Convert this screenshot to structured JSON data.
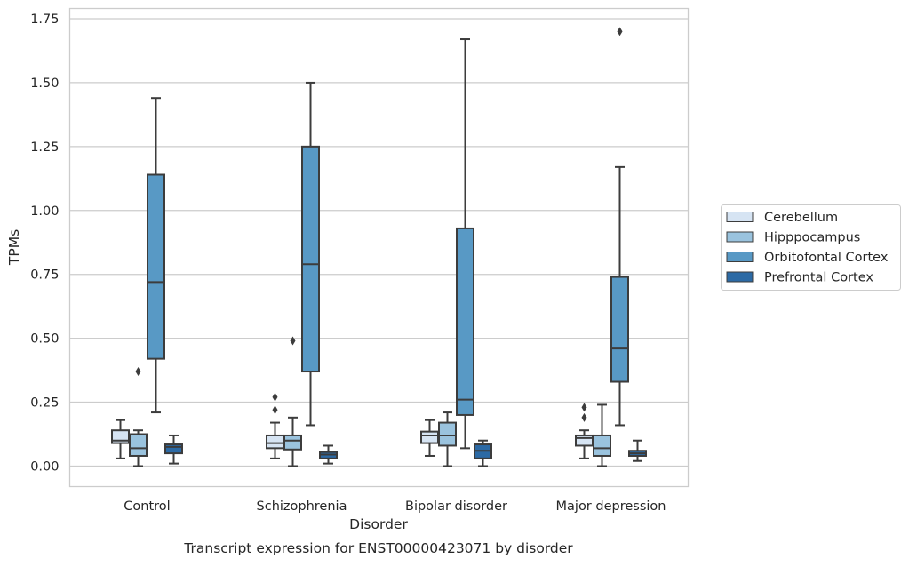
{
  "caption": "Transcript expression for ENST00000423071 by disorder",
  "chart_data": {
    "type": "box",
    "title": "",
    "xlabel": "Disorder",
    "ylabel": "TPMs",
    "ylim": [
      -0.08,
      1.79
    ],
    "yticks": [
      "0.00",
      "0.25",
      "0.50",
      "0.75",
      "1.00",
      "1.25",
      "1.50",
      "1.75"
    ],
    "ytick_values": [
      0.0,
      0.25,
      0.5,
      0.75,
      1.0,
      1.25,
      1.5,
      1.75
    ],
    "grid": "horizontal",
    "legend_position": "right",
    "categories": [
      "Control",
      "Schizophrenia",
      "Bipolar disorder",
      "Major depression"
    ],
    "series": [
      {
        "name": "Cerebellum",
        "color": "#d6e4f3",
        "boxes": [
          {
            "whislo": 0.03,
            "q1": 0.09,
            "med": 0.1,
            "q3": 0.14,
            "whishi": 0.18,
            "fliers": []
          },
          {
            "whislo": 0.03,
            "q1": 0.07,
            "med": 0.09,
            "q3": 0.12,
            "whishi": 0.17,
            "fliers": [
              0.22,
              0.27
            ]
          },
          {
            "whislo": 0.04,
            "q1": 0.09,
            "med": 0.12,
            "q3": 0.135,
            "whishi": 0.18,
            "fliers": []
          },
          {
            "whislo": 0.03,
            "q1": 0.08,
            "med": 0.11,
            "q3": 0.12,
            "whishi": 0.14,
            "fliers": [
              0.19,
              0.23
            ]
          }
        ]
      },
      {
        "name": "Hipppocampus",
        "color": "#9ac3de",
        "boxes": [
          {
            "whislo": 0.0,
            "q1": 0.04,
            "med": 0.07,
            "q3": 0.125,
            "whishi": 0.14,
            "fliers": [
              0.37
            ]
          },
          {
            "whislo": 0.0,
            "q1": 0.065,
            "med": 0.1,
            "q3": 0.12,
            "whishi": 0.19,
            "fliers": [
              0.49
            ]
          },
          {
            "whislo": 0.0,
            "q1": 0.08,
            "med": 0.12,
            "q3": 0.17,
            "whishi": 0.21,
            "fliers": []
          },
          {
            "whislo": 0.0,
            "q1": 0.04,
            "med": 0.07,
            "q3": 0.12,
            "whishi": 0.24,
            "fliers": []
          }
        ]
      },
      {
        "name": "Orbitofontal Cortex",
        "color": "#5899c5",
        "boxes": [
          {
            "whislo": 0.21,
            "q1": 0.42,
            "med": 0.72,
            "q3": 1.14,
            "whishi": 1.44,
            "fliers": []
          },
          {
            "whislo": 0.16,
            "q1": 0.37,
            "med": 0.79,
            "q3": 1.25,
            "whishi": 1.5,
            "fliers": []
          },
          {
            "whislo": 0.07,
            "q1": 0.2,
            "med": 0.26,
            "q3": 0.93,
            "whishi": 1.67,
            "fliers": []
          },
          {
            "whislo": 0.16,
            "q1": 0.33,
            "med": 0.46,
            "q3": 0.74,
            "whishi": 1.17,
            "fliers": [
              1.7
            ]
          }
        ]
      },
      {
        "name": "Prefrontal Cortex",
        "color": "#2c6aa5",
        "boxes": [
          {
            "whislo": 0.01,
            "q1": 0.05,
            "med": 0.075,
            "q3": 0.085,
            "whishi": 0.12,
            "fliers": []
          },
          {
            "whislo": 0.01,
            "q1": 0.03,
            "med": 0.045,
            "q3": 0.055,
            "whishi": 0.08,
            "fliers": []
          },
          {
            "whislo": 0.0,
            "q1": 0.03,
            "med": 0.06,
            "q3": 0.085,
            "whishi": 0.1,
            "fliers": []
          },
          {
            "whislo": 0.02,
            "q1": 0.04,
            "med": 0.05,
            "q3": 0.06,
            "whishi": 0.1,
            "fliers": []
          }
        ]
      }
    ]
  }
}
